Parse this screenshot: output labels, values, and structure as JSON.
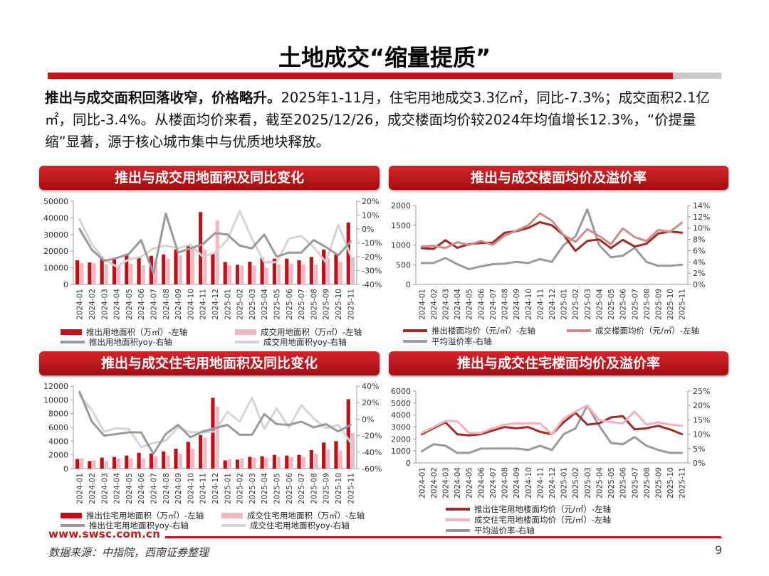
{
  "page": {
    "title": "土地成交“缩量提质”",
    "lead_bold": "推出与成交面积回落收窄，价格略升。",
    "lead_text": "2025年1-11月，住宅用地成交3.3亿㎡，同比-7.3%；成交面积2.1亿㎡，同比-3.4%。从楼面均价来看，截至2025/12/26，成交楼面均价较2024年均值增长12.3%，“价提量缩”显著，源于核心城市集中与优质地块释放。",
    "website": "www.swsc.com.cn",
    "source": "数据来源：中指院，西南证券整理",
    "page_number": "9"
  },
  "colors": {
    "dark_red": "#c0101a",
    "pink": "#f2b8c0",
    "grey": "#999999",
    "light_grey": "#d4d4d4",
    "brown_red": "#9e2a2a",
    "rose": "#cf8a8a",
    "pale_pink": "#f5b0be"
  },
  "chart_data": [
    {
      "type": "bar",
      "title": "推出与成交用地面积及同比变化",
      "categories": [
        "2024-01",
        "2024-02",
        "2024-03",
        "2024-04",
        "2024-05",
        "2024-06",
        "2024-07",
        "2024-08",
        "2024-09",
        "2024-10",
        "2024-11",
        "2024-12",
        "2025-01",
        "2025-02",
        "2025-03",
        "2025-04",
        "2025-05",
        "2025-06",
        "2025-07",
        "2025-08",
        "2025-09",
        "2025-10",
        "2025-11"
      ],
      "left_axis": {
        "ticks": [
          "0",
          "10000",
          "20000",
          "30000",
          "40000",
          "50000"
        ],
        "ylim": [
          0,
          50000
        ]
      },
      "right_axis": {
        "ticks": [
          "-40%",
          "-30%",
          "-20%",
          "-10%",
          "0%",
          "10%",
          "20%"
        ],
        "ylim": [
          -40,
          20
        ]
      },
      "series": [
        {
          "name": "推出用地面积（万㎡）-左轴",
          "kind": "bar",
          "axis": "left",
          "color": "#c0101a",
          "values": [
            14500,
            13200,
            16200,
            15800,
            17800,
            16300,
            17200,
            18000,
            21000,
            23000,
            43500,
            18500,
            13500,
            11800,
            13700,
            16000,
            15500,
            15500,
            14500,
            16500,
            21000,
            18000,
            37200
          ]
        },
        {
          "name": "成交用地面积（万㎡）-左轴",
          "kind": "bar",
          "axis": "left",
          "color": "#f2b8c0",
          "values": [
            12800,
            12700,
            12000,
            11700,
            12500,
            11500,
            14000,
            15500,
            17500,
            21500,
            21000,
            38500,
            11500,
            11300,
            11500,
            10000,
            12000,
            12500,
            12000,
            12000,
            16000,
            13500,
            16500
          ]
        },
        {
          "name": "推出用地面积yoy-右轴",
          "kind": "line",
          "axis": "right",
          "color": "#999999",
          "values": [
            0,
            -15,
            -23,
            -21,
            -18,
            -8,
            -32,
            11,
            -17,
            -14,
            -11,
            -3,
            -4,
            -12,
            -14,
            -4,
            -20,
            -17,
            -17,
            -8,
            -13,
            -19,
            -9
          ]
        },
        {
          "name": "成交用地面积yoy-右轴",
          "kind": "line",
          "axis": "right",
          "color": "#d4d4d4",
          "values": [
            7,
            -11,
            -22,
            -27,
            -22,
            -20,
            -14,
            -12,
            -14,
            -11,
            -20,
            -17,
            -8,
            13,
            -7,
            -24,
            -24,
            -7,
            -5,
            -13,
            -24,
            3,
            -19
          ]
        }
      ]
    },
    {
      "type": "line",
      "title": "推出与成交楼面均价及溢价率",
      "categories": [
        "2024-01",
        "2024-02",
        "2024-03",
        "2024-04",
        "2024-05",
        "2024-06",
        "2024-07",
        "2024-08",
        "2024-09",
        "2024-10",
        "2024-11",
        "2024-12",
        "2025-01",
        "2025-02",
        "2025-03",
        "2025-04",
        "2025-05",
        "2025-06",
        "2025-07",
        "2025-08",
        "2025-09",
        "2025-10",
        "2025-11"
      ],
      "left_axis": {
        "ticks": [
          "0",
          "500",
          "1000",
          "1500",
          "2000"
        ],
        "ylim": [
          0,
          2000
        ]
      },
      "right_axis": {
        "ticks": [
          "0%",
          "2%",
          "4%",
          "6%",
          "8%",
          "10%",
          "12%",
          "14%"
        ],
        "ylim": [
          0,
          14
        ]
      },
      "series": [
        {
          "name": "推出楼面均价（元/㎡）-左轴",
          "kind": "line",
          "axis": "left",
          "color": "#9e2a2a",
          "values": [
            920,
            900,
            1120,
            930,
            1020,
            1050,
            1060,
            1310,
            1350,
            1430,
            1580,
            1500,
            1250,
            850,
            1100,
            1140,
            920,
            1130,
            960,
            1030,
            1290,
            1340,
            1310
          ]
        },
        {
          "name": "成交楼面均价（元/㎡）-左轴",
          "kind": "line",
          "axis": "left",
          "color": "#cf8a8a",
          "values": [
            960,
            980,
            920,
            1070,
            1000,
            1100,
            1000,
            1240,
            1360,
            1500,
            1800,
            1620,
            1250,
            1080,
            1400,
            1230,
            1020,
            1420,
            1200,
            1100,
            1380,
            1330,
            1570
          ]
        },
        {
          "name": "平均溢价率-右轴",
          "kind": "line",
          "axis": "right",
          "color": "#999999",
          "values": [
            3.8,
            3.8,
            4.7,
            3.6,
            2.7,
            3.2,
            3.6,
            3.7,
            4.0,
            3.8,
            4.5,
            4.0,
            7.0,
            8.5,
            13.3,
            7.0,
            4.8,
            5.1,
            6.5,
            4.0,
            3.3,
            3.3,
            3.5
          ]
        }
      ]
    },
    {
      "type": "bar",
      "title": "推出与成交住宅用地面积及同比变化",
      "categories": [
        "2024-01",
        "2024-02",
        "2024-03",
        "2024-04",
        "2024-05",
        "2024-06",
        "2024-07",
        "2024-08",
        "2024-09",
        "2024-10",
        "2024-11",
        "2024-12",
        "2025-01",
        "2025-02",
        "2025-03",
        "2025-04",
        "2025-05",
        "2025-06",
        "2025-07",
        "2025-08",
        "2025-09",
        "2025-10",
        "2025-11"
      ],
      "left_axis": {
        "ticks": [
          "0",
          "2000",
          "4000",
          "6000",
          "8000",
          "10000",
          "12000"
        ],
        "ylim": [
          0,
          12000
        ]
      },
      "right_axis": {
        "ticks": [
          "-60%",
          "-40%",
          "-20%",
          "0%",
          "20%",
          "40%"
        ],
        "ylim": [
          -60,
          40
        ]
      },
      "series": [
        {
          "name": "推出住宅用地面积（万㎡）-左轴",
          "kind": "bar",
          "axis": "left",
          "color": "#c0101a",
          "values": [
            1400,
            1100,
            1600,
            1700,
            1900,
            2300,
            2200,
            2500,
            2900,
            3900,
            4900,
            10300,
            1200,
            1300,
            1700,
            1800,
            2000,
            1900,
            2000,
            2700,
            3800,
            4000,
            10100
          ]
        },
        {
          "name": "成交住宅用地面积（万㎡）-左轴",
          "kind": "bar",
          "axis": "left",
          "color": "#f2b8c0",
          "values": [
            1500,
            1200,
            1100,
            1500,
            1500,
            1500,
            1800,
            1900,
            2200,
            2900,
            4500,
            9000,
            1400,
            1500,
            1600,
            1600,
            1700,
            1700,
            1700,
            2200,
            2800,
            2600,
            5200
          ]
        },
        {
          "name": "推出住宅用地面积yoy-右轴",
          "kind": "line",
          "axis": "right",
          "color": "#999999",
          "values": [
            33,
            -3,
            -20,
            -18,
            -16,
            -16,
            -42,
            -18,
            -7,
            -22,
            -15,
            -11,
            -7,
            -19,
            -19,
            6,
            -6,
            -7,
            -3,
            -10,
            -6,
            -15,
            -7
          ]
        },
        {
          "name": "成交住宅用地面积yoy-右轴",
          "kind": "line",
          "axis": "right",
          "color": "#d4d4d4",
          "values": [
            29,
            11,
            -15,
            -11,
            -12,
            -34,
            -29,
            -26,
            -10,
            -16,
            -16,
            -15,
            9,
            -3,
            26,
            -12,
            13,
            -10,
            17,
            1,
            -11,
            -7,
            -28
          ]
        }
      ]
    },
    {
      "type": "line",
      "title": "推出与成交住宅楼面均价及溢价率",
      "categories": [
        "2024-01",
        "2024-02",
        "2024-03",
        "2024-04",
        "2024-05",
        "2024-06",
        "2024-07",
        "2024-08",
        "2024-09",
        "2024-10",
        "2024-11",
        "2024-12",
        "2025-01",
        "2025-02",
        "2025-03",
        "2025-04",
        "2025-05",
        "2025-06",
        "2025-07",
        "2025-08",
        "2025-09",
        "2025-10",
        "2025-11"
      ],
      "left_axis": {
        "ticks": [
          "0",
          "1000",
          "2000",
          "3000",
          "4000",
          "5000",
          "6000"
        ],
        "ylim": [
          0,
          6000
        ]
      },
      "right_axis": {
        "ticks": [
          "0%",
          "5%",
          "10%",
          "15%",
          "20%",
          "25%"
        ],
        "ylim": [
          0,
          25
        ]
      },
      "series": [
        {
          "name": "推出住宅用地楼面均价（元/㎡）-左轴",
          "kind": "line",
          "axis": "left",
          "color": "#9e2a2a",
          "values": [
            2400,
            2900,
            3400,
            2400,
            2300,
            2400,
            2700,
            3000,
            2900,
            3000,
            2600,
            2400,
            3400,
            4200,
            3200,
            3300,
            3800,
            3900,
            2800,
            2900,
            3100,
            2800,
            2400
          ]
        },
        {
          "name": "成交住宅用地楼面均价（元/㎡）-左轴",
          "kind": "line",
          "axis": "left",
          "color": "#f5b0be",
          "values": [
            2500,
            3000,
            3500,
            3500,
            2500,
            2500,
            2900,
            3200,
            3300,
            3300,
            3300,
            2400,
            3700,
            4300,
            4800,
            3600,
            3400,
            3300,
            4300,
            3200,
            3400,
            3200,
            3100
          ]
        },
        {
          "name": "平均溢价率-右轴",
          "kind": "line",
          "axis": "right",
          "color": "#999999",
          "values": [
            4,
            6.5,
            6,
            3.5,
            3.5,
            5,
            5,
            5,
            5,
            4.5,
            6,
            4.5,
            10,
            12,
            20,
            13,
            7,
            6.5,
            9,
            6,
            4.5,
            3.5,
            3.5
          ]
        }
      ]
    }
  ]
}
